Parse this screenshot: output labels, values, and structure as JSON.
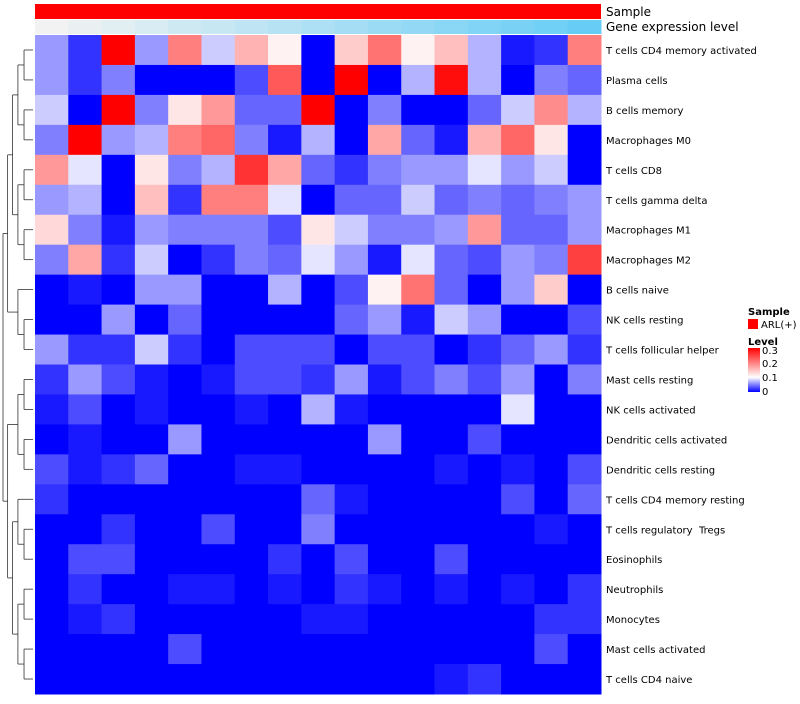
{
  "annotation": {
    "sample_label": "Sample",
    "expression_label": "Gene expression level",
    "sample_color": "#ff0000",
    "expression_gradient_start": "#f2f2f2",
    "expression_gradient_end": "#67cdf6"
  },
  "legend": {
    "sample_title": "Sample",
    "sample_item_label": "ARL(+)",
    "sample_item_color": "#ff0000",
    "level_title": "Level",
    "level_ticks": [
      "0.3",
      "0.2",
      "0.1",
      "0"
    ]
  },
  "chart_data": {
    "type": "heatmap",
    "title": "",
    "color_scale": {
      "min": 0,
      "mid": 0.1,
      "max": 0.3,
      "low_color": "#0000ff",
      "mid_color": "#ffffff",
      "high_color": "#ff0000"
    },
    "rows": [
      "T cells CD4 memory activated",
      "Plasma cells",
      "B cells memory",
      "Macrophages M0",
      "T cells CD8",
      "T cells gamma delta",
      "Macrophages M1",
      "Macrophages M2",
      "B cells naive",
      "NK cells resting",
      "T cells follicular helper",
      "Mast cells resting",
      "NK cells activated",
      "Dendritic cells activated",
      "Dendritic cells resting",
      "T cells CD4 memory resting",
      "T cells regulatory  Tregs",
      "Eosinophils",
      "Neutrophils",
      "Monocytes",
      "Mast cells activated",
      "T cells CD4 naive"
    ],
    "values": [
      [
        0.06,
        0.02,
        0.3,
        0.06,
        0.2,
        0.08,
        0.16,
        0.11,
        0.0,
        0.14,
        0.21,
        0.11,
        0.15,
        0.07,
        0.01,
        0.02,
        0.2
      ],
      [
        0.06,
        0.02,
        0.05,
        0.0,
        0.0,
        0.0,
        0.03,
        0.23,
        0.0,
        0.3,
        0.0,
        0.07,
        0.29,
        0.07,
        0.0,
        0.05,
        0.04
      ],
      [
        0.08,
        0.0,
        0.3,
        0.05,
        0.12,
        0.18,
        0.04,
        0.04,
        0.3,
        0.0,
        0.05,
        0.0,
        0.0,
        0.04,
        0.08,
        0.19,
        0.07
      ],
      [
        0.05,
        0.3,
        0.06,
        0.07,
        0.2,
        0.22,
        0.05,
        0.01,
        0.07,
        0.0,
        0.17,
        0.04,
        0.01,
        0.16,
        0.22,
        0.12,
        0.0
      ],
      [
        0.18,
        0.09,
        0.0,
        0.12,
        0.05,
        0.07,
        0.26,
        0.17,
        0.04,
        0.02,
        0.05,
        0.06,
        0.06,
        0.09,
        0.06,
        0.08,
        0.0
      ],
      [
        0.06,
        0.07,
        0.0,
        0.15,
        0.02,
        0.2,
        0.2,
        0.09,
        0.0,
        0.04,
        0.04,
        0.08,
        0.04,
        0.05,
        0.04,
        0.05,
        0.06
      ],
      [
        0.13,
        0.05,
        0.01,
        0.06,
        0.05,
        0.05,
        0.05,
        0.03,
        0.12,
        0.08,
        0.05,
        0.05,
        0.06,
        0.18,
        0.04,
        0.04,
        0.06
      ],
      [
        0.05,
        0.17,
        0.02,
        0.08,
        0.0,
        0.02,
        0.05,
        0.04,
        0.09,
        0.06,
        0.01,
        0.09,
        0.04,
        0.03,
        0.06,
        0.05,
        0.25
      ],
      [
        0.0,
        0.01,
        0.0,
        0.06,
        0.06,
        0.0,
        0.0,
        0.07,
        0.0,
        0.03,
        0.11,
        0.21,
        0.04,
        0.0,
        0.06,
        0.14,
        0.0
      ],
      [
        0.0,
        0.0,
        0.06,
        0.0,
        0.04,
        0.0,
        0.0,
        0.0,
        0.0,
        0.04,
        0.06,
        0.01,
        0.08,
        0.06,
        0.0,
        0.0,
        0.03
      ],
      [
        0.06,
        0.02,
        0.02,
        0.08,
        0.02,
        0.0,
        0.03,
        0.03,
        0.03,
        0.0,
        0.03,
        0.03,
        0.0,
        0.02,
        0.04,
        0.06,
        0.02
      ],
      [
        0.02,
        0.06,
        0.03,
        0.01,
        0.0,
        0.01,
        0.03,
        0.03,
        0.02,
        0.06,
        0.01,
        0.03,
        0.05,
        0.03,
        0.06,
        0.0,
        0.05
      ],
      [
        0.01,
        0.03,
        0.0,
        0.01,
        0.0,
        0.0,
        0.01,
        0.0,
        0.07,
        0.01,
        0.0,
        0.0,
        0.0,
        0.0,
        0.09,
        0.0,
        0.0
      ],
      [
        0.0,
        0.01,
        0.0,
        0.0,
        0.06,
        0.0,
        0.0,
        0.0,
        0.0,
        0.0,
        0.06,
        0.0,
        0.0,
        0.03,
        0.0,
        0.0,
        0.0
      ],
      [
        0.03,
        0.01,
        0.02,
        0.04,
        0.0,
        0.0,
        0.01,
        0.01,
        0.0,
        0.0,
        0.0,
        0.0,
        0.01,
        0.0,
        0.01,
        0.0,
        0.03
      ],
      [
        0.02,
        0.0,
        0.0,
        0.0,
        0.0,
        0.0,
        0.0,
        0.0,
        0.04,
        0.01,
        0.0,
        0.0,
        0.0,
        0.0,
        0.03,
        0.0,
        0.04
      ],
      [
        0.0,
        0.0,
        0.02,
        0.0,
        0.0,
        0.03,
        0.0,
        0.0,
        0.05,
        0.0,
        0.0,
        0.0,
        0.0,
        0.0,
        0.0,
        0.01,
        0.0
      ],
      [
        0.0,
        0.03,
        0.03,
        0.0,
        0.0,
        0.0,
        0.0,
        0.02,
        0.0,
        0.03,
        0.0,
        0.0,
        0.03,
        0.0,
        0.0,
        0.0,
        0.0
      ],
      [
        0.0,
        0.02,
        0.0,
        0.0,
        0.01,
        0.01,
        0.0,
        0.01,
        0.0,
        0.02,
        0.01,
        0.0,
        0.01,
        0.0,
        0.01,
        0.0,
        0.02
      ],
      [
        0.0,
        0.01,
        0.02,
        0.0,
        0.0,
        0.0,
        0.0,
        0.0,
        0.01,
        0.01,
        0.0,
        0.0,
        0.0,
        0.0,
        0.0,
        0.02,
        0.02
      ],
      [
        0.0,
        0.0,
        0.0,
        0.0,
        0.03,
        0.0,
        0.0,
        0.0,
        0.0,
        0.0,
        0.0,
        0.0,
        0.0,
        0.0,
        0.0,
        0.03,
        0.0
      ],
      [
        0.0,
        0.0,
        0.0,
        0.0,
        0.0,
        0.0,
        0.0,
        0.0,
        0.0,
        0.0,
        0.0,
        0.0,
        0.01,
        0.02,
        0.0,
        0.0,
        0.0
      ]
    ],
    "expression_levels": [
      0.0,
      0.06,
      0.12,
      0.18,
      0.25,
      0.31,
      0.37,
      0.43,
      0.5,
      0.56,
      0.62,
      0.68,
      0.75,
      0.81,
      0.87,
      0.93,
      1.0
    ],
    "dendrogram": "[[[[[0,1],[2,3]],[[4,5],[6,7]]],[8,[9,10]]],[[[11,12],[13,14]],[[15,[16,17]],[[18,19],[20,21]]]]]"
  }
}
